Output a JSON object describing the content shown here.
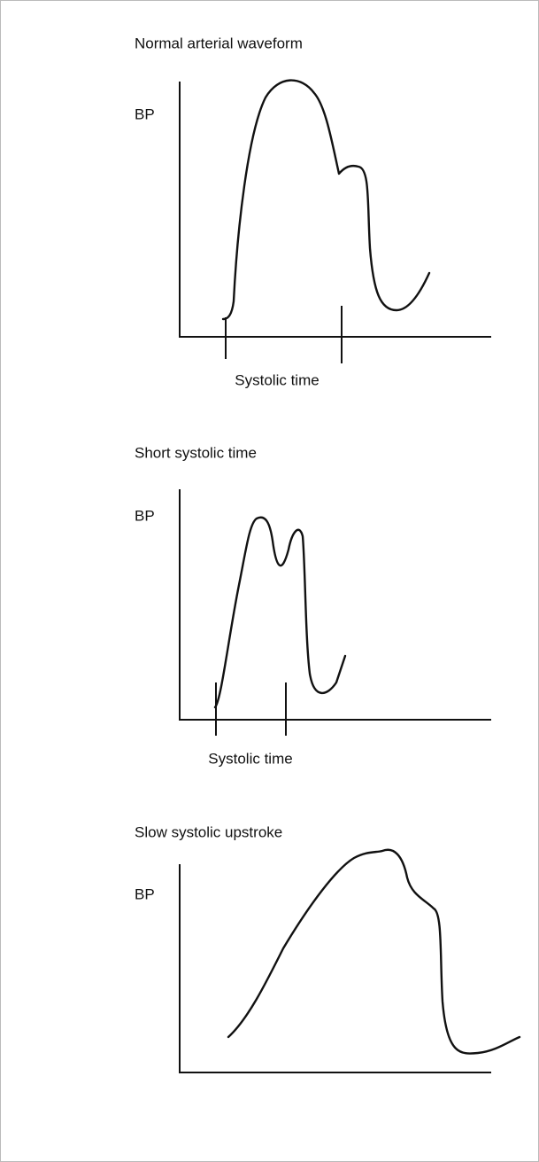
{
  "panels": [
    {
      "title": "Normal arterial waveform",
      "y_label": "BP",
      "x_label": "Systolic time"
    },
    {
      "title": "Short systolic time",
      "y_label": "BP",
      "x_label": "Systolic time"
    },
    {
      "title": "Slow systolic upstroke",
      "y_label": "BP"
    }
  ]
}
